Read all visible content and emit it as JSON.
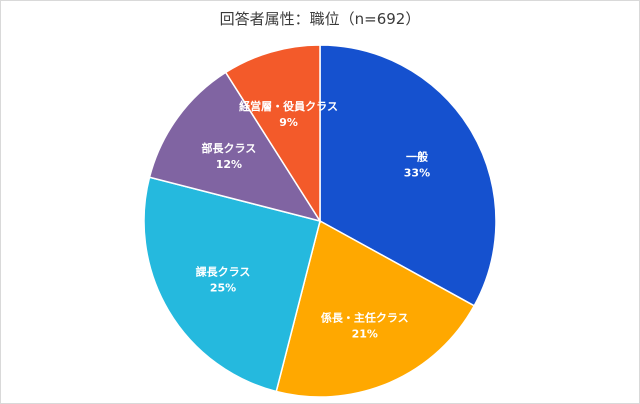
{
  "chart_data": {
    "type": "pie",
    "title": "回答者属性：職位（n=692）",
    "categories": [
      "一般",
      "係長・主任クラス",
      "課長クラス",
      "部長クラス",
      "経営層・役員クラス"
    ],
    "values": [
      33,
      21,
      25,
      12,
      9
    ],
    "value_labels": [
      "33%",
      "21%",
      "25%",
      "12%",
      "9%"
    ],
    "colors": [
      "#1551cf",
      "#ffa800",
      "#25b9de",
      "#8064a2",
      "#f35a2a"
    ],
    "start_angle_deg": 0,
    "direction": "clockwise"
  }
}
